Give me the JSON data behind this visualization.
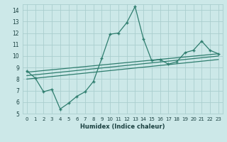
{
  "xlabel": "Humidex (Indice chaleur)",
  "xlim": [
    -0.5,
    23.5
  ],
  "ylim": [
    5,
    14.5
  ],
  "yticks": [
    5,
    6,
    7,
    8,
    9,
    10,
    11,
    12,
    13,
    14
  ],
  "xticks": [
    0,
    1,
    2,
    3,
    4,
    5,
    6,
    7,
    8,
    9,
    10,
    11,
    12,
    13,
    14,
    15,
    16,
    17,
    18,
    19,
    20,
    21,
    22,
    23
  ],
  "bg_color": "#cce8e8",
  "line_color": "#2e7d6e",
  "grid_color": "#aacece",
  "main_line": {
    "x": [
      0,
      1,
      2,
      3,
      4,
      5,
      6,
      7,
      8,
      9,
      10,
      11,
      12,
      13,
      14,
      15,
      16,
      17,
      18,
      19,
      20,
      21,
      22,
      23
    ],
    "y": [
      8.7,
      8.1,
      6.9,
      7.1,
      5.4,
      5.9,
      6.5,
      6.9,
      7.8,
      9.8,
      11.9,
      12.0,
      12.9,
      14.3,
      11.5,
      9.6,
      9.7,
      9.3,
      9.5,
      10.3,
      10.5,
      11.3,
      10.5,
      10.2
    ]
  },
  "reg_lines": [
    {
      "x0": 0,
      "y0": 8.6,
      "x1": 23,
      "y1": 10.2
    },
    {
      "x0": 0,
      "y0": 8.3,
      "x1": 23,
      "y1": 10.0
    },
    {
      "x0": 0,
      "y0": 8.0,
      "x1": 23,
      "y1": 9.7
    }
  ]
}
